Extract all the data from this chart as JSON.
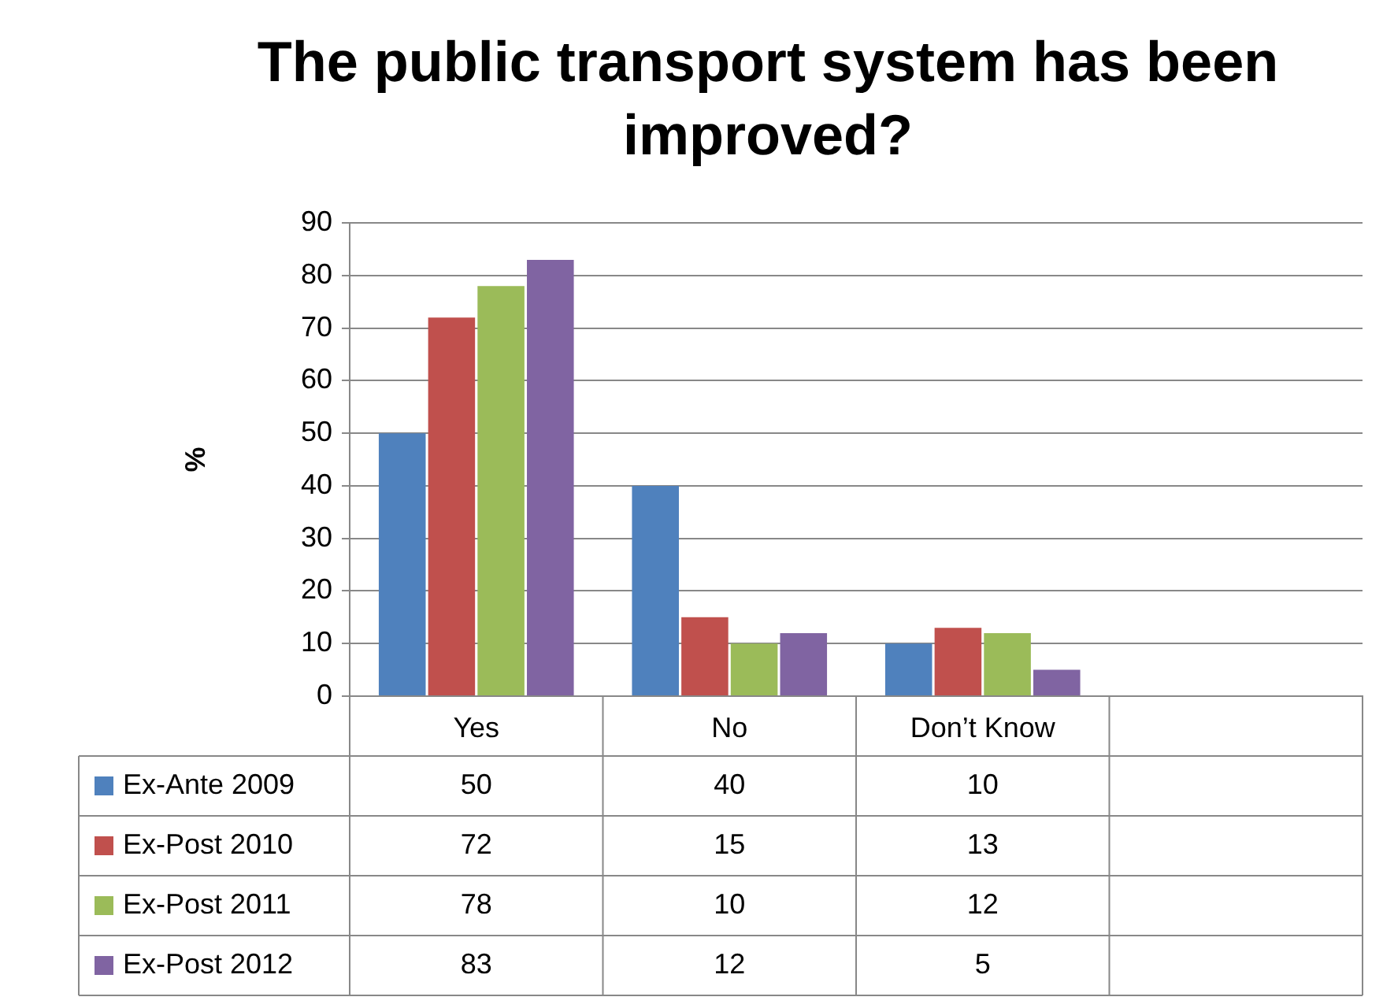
{
  "chart_data": {
    "type": "bar",
    "title": "The public transport system has been improved?",
    "ylabel": "%",
    "categories": [
      "Yes",
      "No",
      "Don’t Know",
      null
    ],
    "series": [
      {
        "name": "Ex-Ante 2009",
        "color": "#4f81bd",
        "values": [
          50,
          40,
          10,
          null
        ]
      },
      {
        "name": "Ex-Post 2010",
        "color": "#c0504d",
        "values": [
          72,
          15,
          13,
          null
        ]
      },
      {
        "name": "Ex-Post 2011",
        "color": "#9bbb59",
        "values": [
          78,
          10,
          12,
          null
        ]
      },
      {
        "name": "Ex-Post 2012",
        "color": "#8064a2",
        "values": [
          83,
          12,
          5,
          null
        ]
      }
    ],
    "ylim": [
      0,
      90
    ],
    "yticks": [
      0,
      10,
      20,
      30,
      40,
      50,
      60,
      70,
      80,
      90
    ],
    "grid": "y",
    "legend": "bottom",
    "data_labels": true
  }
}
